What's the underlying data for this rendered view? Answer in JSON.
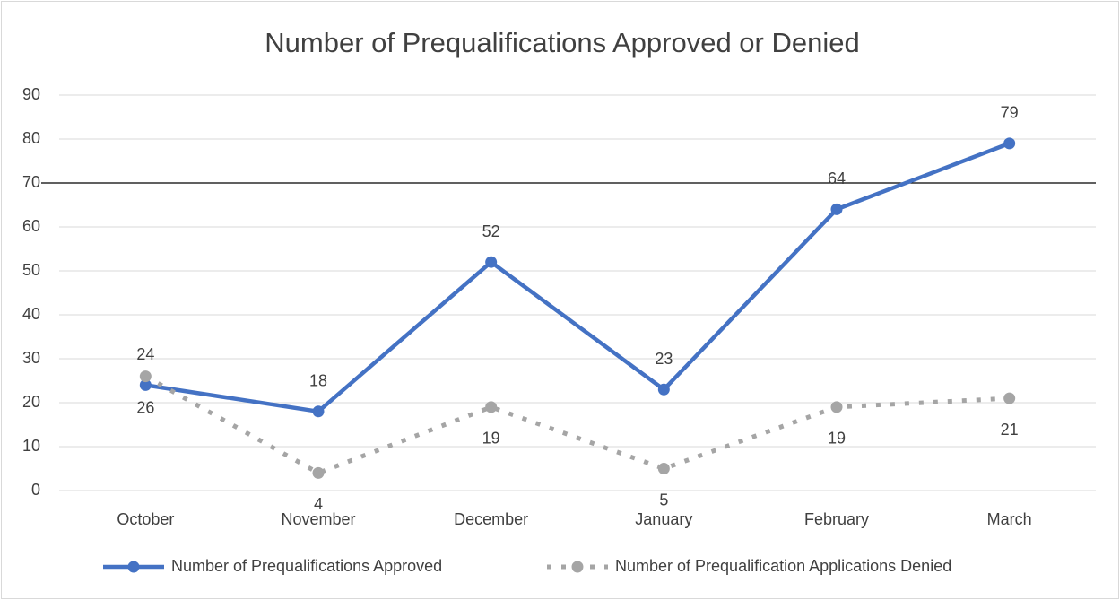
{
  "chart_data": {
    "type": "line",
    "title": "Number of Prequalifications Approved or Denied",
    "categories": [
      "October",
      "November",
      "December",
      "January",
      "February",
      "March"
    ],
    "series": [
      {
        "name": "Number of Prequalifications Approved",
        "color": "#4472c4",
        "style": "solid",
        "values": [
          24,
          18,
          52,
          23,
          64,
          79
        ]
      },
      {
        "name": "Number of Prequalification Applications Denied",
        "color": "#a5a5a5",
        "style": "dotted",
        "values": [
          26,
          4,
          19,
          5,
          19,
          21
        ]
      }
    ],
    "ylim": [
      0,
      90
    ],
    "yticks": [
      0,
      10,
      20,
      30,
      40,
      50,
      60,
      70,
      80,
      90
    ],
    "grid": true,
    "reference_line": 70,
    "legend": "bottom",
    "data_labels": true
  }
}
